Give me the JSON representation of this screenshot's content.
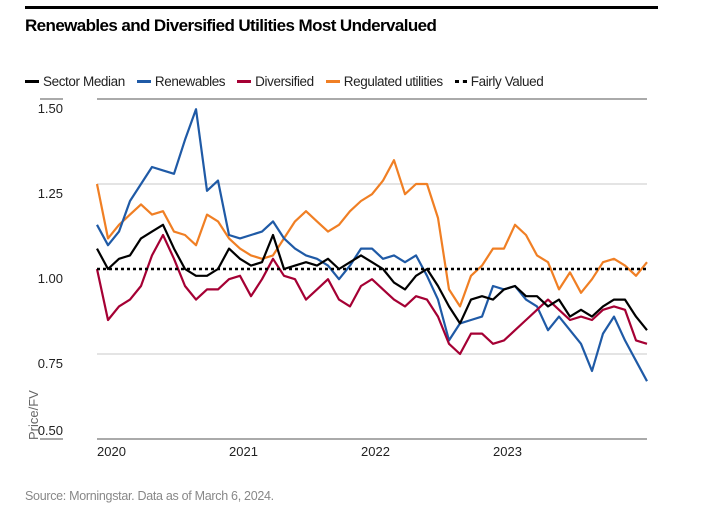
{
  "title": "Renewables and Diversified Utilities Most Undervalued",
  "source": "Source: Morningstar. Data as of March 6, 2024.",
  "legend": [
    {
      "label": "Sector Median",
      "color": "#000000",
      "style": "solid"
    },
    {
      "label": "Renewables",
      "color": "#1f5aa6",
      "style": "solid"
    },
    {
      "label": "Diversified",
      "color": "#a50034",
      "style": "solid"
    },
    {
      "label": "Regulated utilities",
      "color": "#f07f24",
      "style": "solid"
    },
    {
      "label": "Fairly Valued",
      "color": "#000000",
      "style": "dotted"
    }
  ],
  "chart_data": {
    "type": "line",
    "title": "Renewables and Diversified Utilities Most Undervalued",
    "xlabel": "",
    "ylabel": "Price/FV",
    "ylim": [
      0.5,
      1.5
    ],
    "yticks": [
      "1.50",
      "1.25",
      "1.00",
      "0.75",
      "0.50"
    ],
    "xticks": [
      "2020",
      "2021",
      "2022",
      "2023"
    ],
    "grid": true,
    "legend_position": "top",
    "reference_line": {
      "name": "Fairly Valued",
      "value": 1.0
    },
    "x": [
      "2020-01",
      "2020-02",
      "2020-03",
      "2020-04",
      "2020-05",
      "2020-06",
      "2020-07",
      "2020-08",
      "2020-09",
      "2020-10",
      "2020-11",
      "2020-12",
      "2021-01",
      "2021-02",
      "2021-03",
      "2021-04",
      "2021-05",
      "2021-06",
      "2021-07",
      "2021-08",
      "2021-09",
      "2021-10",
      "2021-11",
      "2021-12",
      "2022-01",
      "2022-02",
      "2022-03",
      "2022-04",
      "2022-05",
      "2022-06",
      "2022-07",
      "2022-08",
      "2022-09",
      "2022-10",
      "2022-11",
      "2022-12",
      "2023-01",
      "2023-02",
      "2023-03",
      "2023-04",
      "2023-05",
      "2023-06",
      "2023-07",
      "2023-08",
      "2023-09",
      "2023-10",
      "2023-11",
      "2023-12",
      "2024-01",
      "2024-02",
      "2024-03"
    ],
    "series": [
      {
        "name": "Regulated utilities",
        "color": "#f07f24",
        "values": [
          1.25,
          1.09,
          1.13,
          1.16,
          1.19,
          1.16,
          1.17,
          1.11,
          1.1,
          1.07,
          1.16,
          1.14,
          1.09,
          1.06,
          1.04,
          1.03,
          1.04,
          1.09,
          1.14,
          1.17,
          1.14,
          1.11,
          1.13,
          1.17,
          1.2,
          1.22,
          1.26,
          1.32,
          1.22,
          1.25,
          1.25,
          1.15,
          0.94,
          0.89,
          0.98,
          1.01,
          1.06,
          1.06,
          1.13,
          1.1,
          1.04,
          1.02,
          0.94,
          0.99,
          0.93,
          0.97,
          1.02,
          1.03,
          1.01,
          0.98,
          1.02
        ]
      },
      {
        "name": "Renewables",
        "color": "#1f5aa6",
        "values": [
          1.13,
          1.07,
          1.11,
          1.2,
          1.25,
          1.3,
          1.29,
          1.28,
          1.38,
          1.47,
          1.23,
          1.26,
          1.1,
          1.09,
          1.1,
          1.11,
          1.14,
          1.09,
          1.06,
          1.04,
          1.03,
          1.01,
          0.97,
          1.01,
          1.06,
          1.06,
          1.03,
          1.04,
          1.02,
          1.04,
          0.98,
          0.91,
          0.79,
          0.84,
          0.85,
          0.86,
          0.95,
          0.94,
          0.95,
          0.91,
          0.89,
          0.82,
          0.86,
          0.82,
          0.78,
          0.7,
          0.81,
          0.86,
          0.79,
          0.73,
          0.67
        ]
      },
      {
        "name": "Diversified",
        "color": "#a50034",
        "values": [
          1.0,
          0.85,
          0.89,
          0.91,
          0.95,
          1.04,
          1.1,
          1.03,
          0.95,
          0.91,
          0.94,
          0.94,
          0.97,
          0.98,
          0.92,
          0.97,
          1.03,
          0.98,
          0.97,
          0.91,
          0.94,
          0.97,
          0.91,
          0.89,
          0.95,
          0.97,
          0.94,
          0.91,
          0.89,
          0.92,
          0.91,
          0.86,
          0.78,
          0.75,
          0.81,
          0.81,
          0.78,
          0.79,
          0.82,
          0.85,
          0.88,
          0.91,
          0.88,
          0.85,
          0.86,
          0.85,
          0.88,
          0.89,
          0.88,
          0.79,
          0.78
        ]
      },
      {
        "name": "Sector Median",
        "color": "#000000",
        "values": [
          1.06,
          1.0,
          1.03,
          1.04,
          1.09,
          1.11,
          1.13,
          1.06,
          1.0,
          0.98,
          0.98,
          1.0,
          1.06,
          1.03,
          1.01,
          1.02,
          1.1,
          1.0,
          1.01,
          1.02,
          1.01,
          1.03,
          1.0,
          1.02,
          1.04,
          1.02,
          1.0,
          0.96,
          0.94,
          0.98,
          1.0,
          0.95,
          0.89,
          0.84,
          0.91,
          0.92,
          0.91,
          0.94,
          0.95,
          0.92,
          0.92,
          0.89,
          0.91,
          0.86,
          0.88,
          0.86,
          0.89,
          0.91,
          0.91,
          0.86,
          0.82
        ]
      }
    ]
  }
}
